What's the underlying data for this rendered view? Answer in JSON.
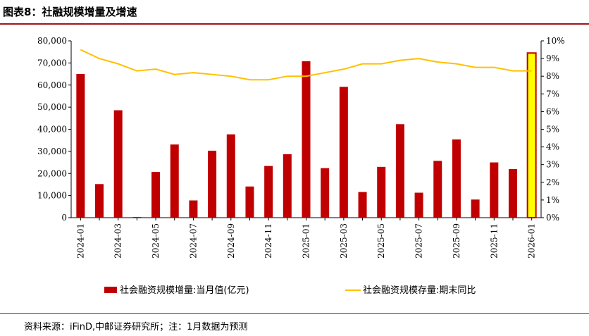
{
  "figure_title": "图表8：社融规模增量及增速",
  "source_note": "资料来源：iFinD,中邮证券研究所；注：1月数据为预测",
  "colors": {
    "bar": "#c00000",
    "bar_highlight_fill": "#ffff00",
    "bar_highlight_stroke": "#c00000",
    "line": "#ffc000",
    "rule": "#a0141c"
  },
  "chart_data": {
    "type": "bar+line",
    "title": "",
    "categories": [
      "2024-01",
      "2024-02",
      "2024-03",
      "2024-04",
      "2024-05",
      "2024-06",
      "2024-07",
      "2024-08",
      "2024-09",
      "2024-10",
      "2024-11",
      "2024-12",
      "2025-01",
      "2025-02",
      "2025-03",
      "2025-04",
      "2025-05",
      "2025-06",
      "2025-07",
      "2025-08",
      "2025-09",
      "2025-10",
      "2025-11",
      "2025-12",
      "2026-01"
    ],
    "x_tick_labels": [
      "2024-01",
      "2024-03",
      "2024-05",
      "2024-07",
      "2024-09",
      "2024-11",
      "2025-01",
      "2025-03",
      "2025-05",
      "2025-07",
      "2025-09",
      "2025-11",
      "2026-01"
    ],
    "series": [
      {
        "name": "社会融资规模增量:当月值(亿元)",
        "type": "bar",
        "axis": "left",
        "values": [
          65000,
          15200,
          48600,
          0,
          20700,
          33100,
          7800,
          30300,
          37700,
          14100,
          23400,
          28700,
          70800,
          22400,
          59200,
          11600,
          23000,
          42300,
          11300,
          25700,
          35400,
          8200,
          25000,
          22000,
          74500
        ],
        "highlight_last": true
      },
      {
        "name": "社会融资规模存量:期末同比",
        "type": "line",
        "axis": "right",
        "values": [
          9.5,
          9.0,
          8.7,
          8.3,
          8.4,
          8.1,
          8.2,
          8.1,
          8.0,
          7.8,
          7.8,
          8.0,
          8.0,
          8.2,
          8.4,
          8.7,
          8.7,
          8.9,
          9.0,
          8.8,
          8.7,
          8.5,
          8.5,
          8.3,
          8.3
        ]
      }
    ],
    "y_left": {
      "min": 0,
      "max": 80000,
      "step": 10000,
      "tick_labels": [
        "0",
        "10,000",
        "20,000",
        "30,000",
        "40,000",
        "50,000",
        "60,000",
        "70,000",
        "80,000"
      ]
    },
    "y_right": {
      "min": 0,
      "max": 10,
      "step": 1,
      "tick_labels": [
        "0%",
        "1%",
        "2%",
        "3%",
        "4%",
        "5%",
        "6%",
        "7%",
        "8%",
        "9%",
        "10%"
      ]
    },
    "grid": false,
    "legend_position": "bottom"
  }
}
